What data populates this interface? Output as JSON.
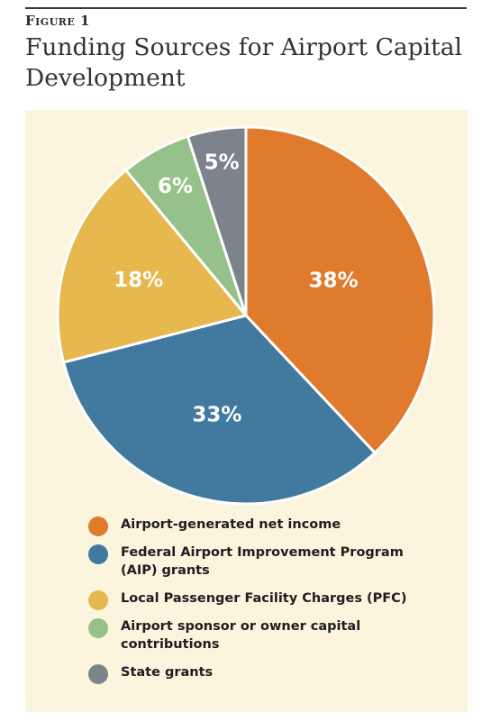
{
  "figure_label": "Figure 1",
  "title": "Funding Sources for Airport Capital Development",
  "chart_data": {
    "type": "pie",
    "title": "Funding Sources for Airport Capital Development",
    "slices": [
      {
        "label": "Airport-generated net income",
        "value": 38,
        "display": "38%",
        "color": "#e07a2c"
      },
      {
        "label": "Federal Airport Improvement Program (AIP) grants",
        "value": 33,
        "display": "33%",
        "color": "#41799f"
      },
      {
        "label": "Local Passenger Facility Charges (PFC)",
        "value": 18,
        "display": "18%",
        "color": "#e6b84e"
      },
      {
        "label": "Airport sponsor or owner capital contributions",
        "value": 6,
        "display": "6%",
        "color": "#97c18a"
      },
      {
        "label": "State grants",
        "value": 5,
        "display": "5%",
        "color": "#7d838a"
      }
    ],
    "legend_position": "bottom"
  }
}
